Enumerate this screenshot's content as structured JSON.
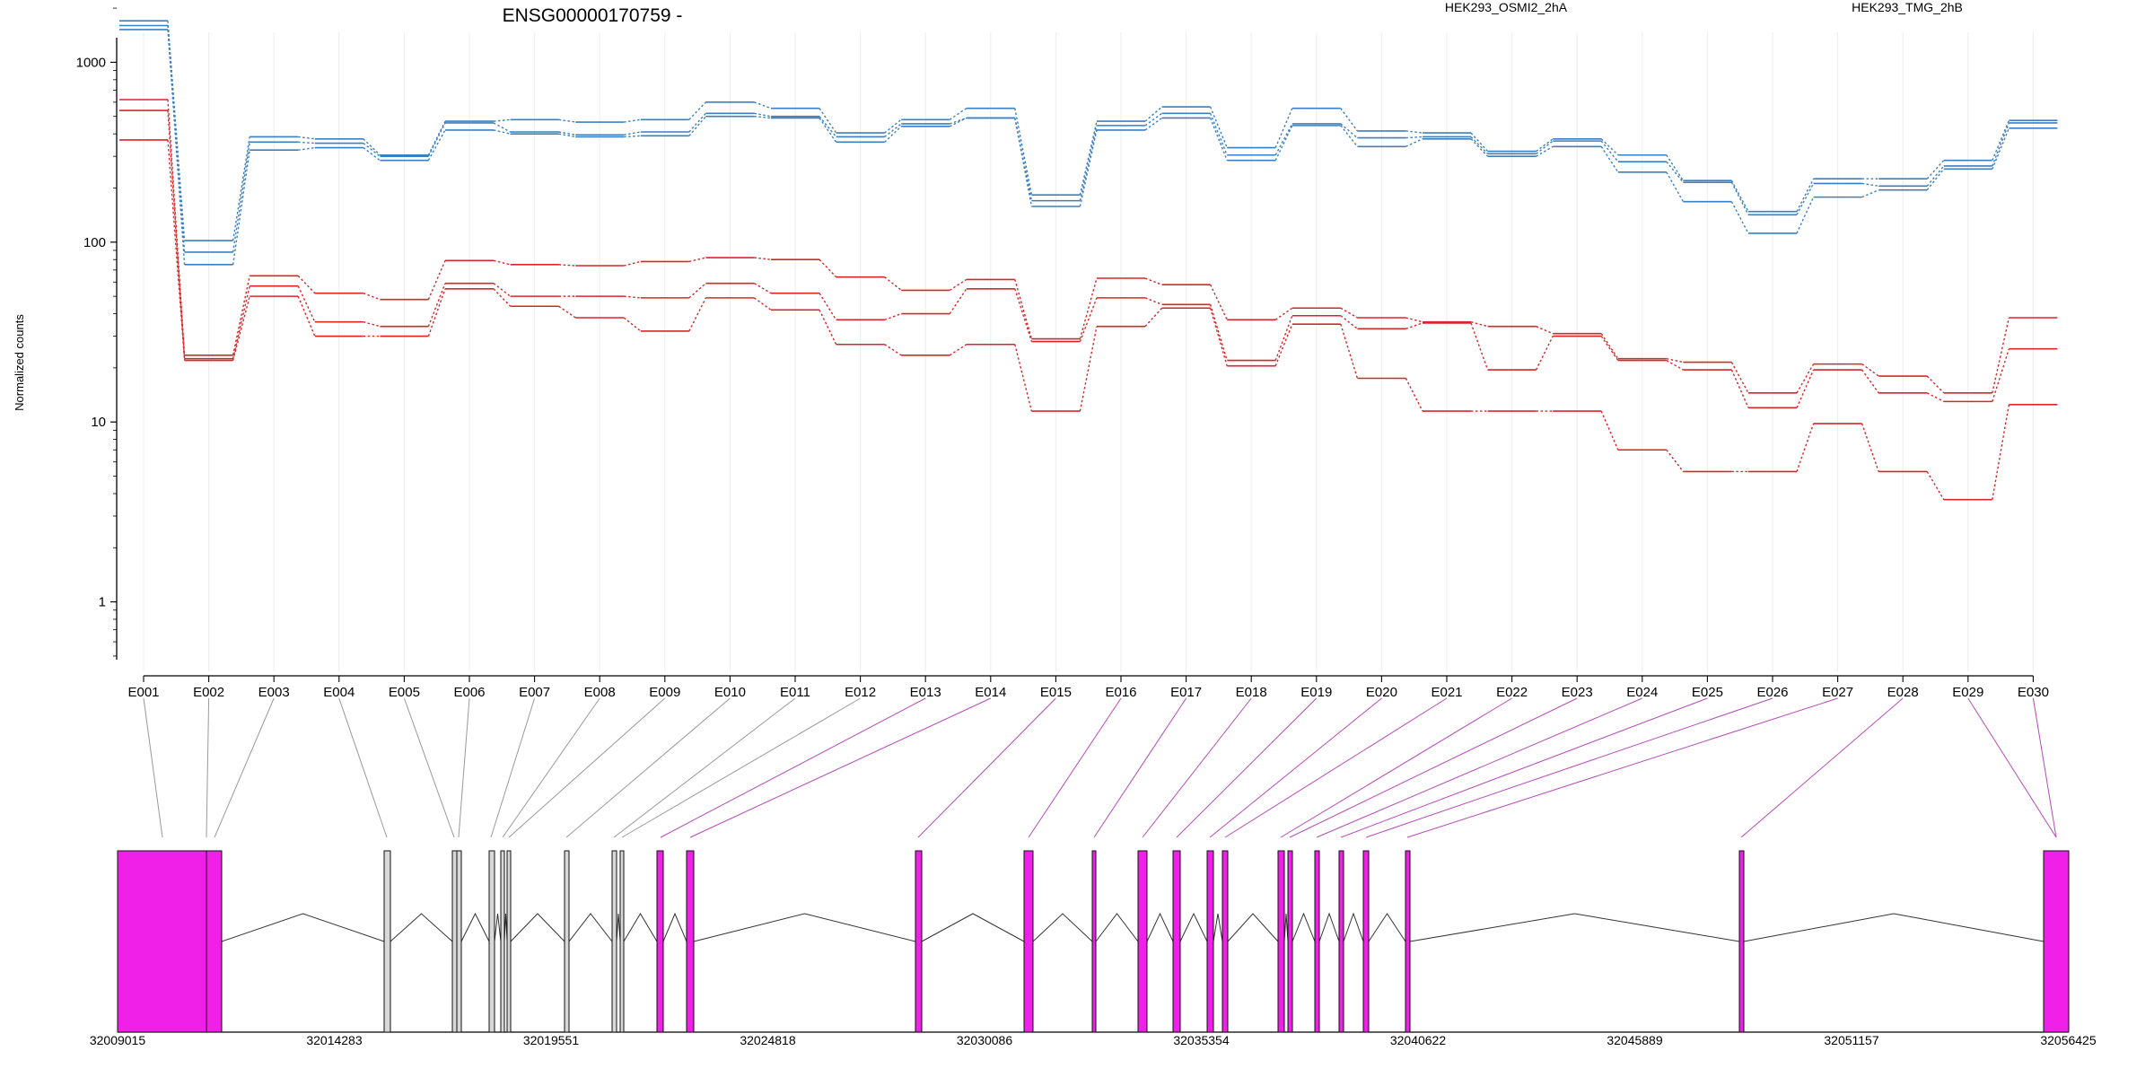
{
  "chart_data": {
    "type": "line",
    "title": "ENSG00000170759 -",
    "ylabel": "Normalized counts",
    "yscale": "log",
    "ylim": [
      0.45,
      2300
    ],
    "yticks": [
      "1",
      "10",
      "100",
      "1000"
    ],
    "colors": {
      "red": "#d62728",
      "blue": "#3b7fc0",
      "exon": "#f020e8",
      "grey": "#d8d8d8"
    },
    "legend": [
      {
        "name": "HEK293_OSMI2_2hA",
        "color": "#d62728"
      },
      {
        "name": "HEK293_TMG_2hB",
        "color": "#3b7fc0"
      }
    ],
    "categories": [
      "E001",
      "E002",
      "E003",
      "E004",
      "E005",
      "E006",
      "E007",
      "E008",
      "E009",
      "E010",
      "E011",
      "E012",
      "E013",
      "E014",
      "E015",
      "E016",
      "E017",
      "E018",
      "E019",
      "E020",
      "E021",
      "E022",
      "E023",
      "E024",
      "E025",
      "E026",
      "E027",
      "E028",
      "E029",
      "E030"
    ],
    "series": [
      {
        "group": "blue",
        "values": [
          1700,
          102,
          385,
          375,
          305,
          470,
          480,
          465,
          480,
          600,
          555,
          405,
          480,
          555,
          183,
          470,
          565,
          335,
          555,
          415,
          405,
          320,
          375,
          305,
          220,
          148,
          225,
          225,
          285,
          475
        ]
      },
      {
        "group": "blue",
        "values": [
          1600,
          88,
          360,
          355,
          300,
          460,
          410,
          395,
          410,
          520,
          500,
          385,
          455,
          490,
          170,
          445,
          520,
          305,
          455,
          380,
          385,
          310,
          365,
          280,
          215,
          142,
          212,
          205,
          265,
          460
        ]
      },
      {
        "group": "blue",
        "values": [
          1520,
          75,
          325,
          335,
          285,
          420,
          400,
          385,
          390,
          500,
          490,
          360,
          440,
          490,
          158,
          420,
          490,
          285,
          445,
          340,
          375,
          300,
          340,
          245,
          168,
          112,
          178,
          195,
          255,
          430
        ]
      },
      {
        "group": "red",
        "values": [
          620,
          23.5,
          65,
          52,
          48,
          79,
          75,
          74,
          78,
          82,
          80,
          64,
          54,
          62,
          29,
          63,
          58,
          37,
          43,
          38,
          36,
          34,
          31,
          22.5,
          21.5,
          14.5,
          21,
          18,
          14.5,
          38
        ]
      },
      {
        "group": "red",
        "values": [
          540,
          22.5,
          57,
          36,
          34,
          59,
          50,
          50,
          49,
          59,
          52,
          37,
          40,
          55,
          28,
          49,
          45,
          22,
          39,
          33,
          35.5,
          19.5,
          30,
          22,
          19.5,
          12,
          19.5,
          14.5,
          13,
          25.5
        ]
      },
      {
        "group": "red",
        "values": [
          370,
          22,
          50,
          30,
          30,
          55,
          44,
          38,
          32,
          49,
          42,
          27,
          23.5,
          27,
          11.5,
          34,
          43,
          20.5,
          35,
          17.5,
          11.5,
          11.5,
          11.5,
          7,
          5.3,
          5.3,
          9.8,
          5.3,
          3.7,
          12.5
        ]
      }
    ],
    "genome_ticks": [
      "32009015",
      "32014283",
      "32019551",
      "32024818",
      "32030086",
      "32035354",
      "32040622",
      "32045889",
      "32051157",
      "32056425"
    ],
    "grid": true
  }
}
